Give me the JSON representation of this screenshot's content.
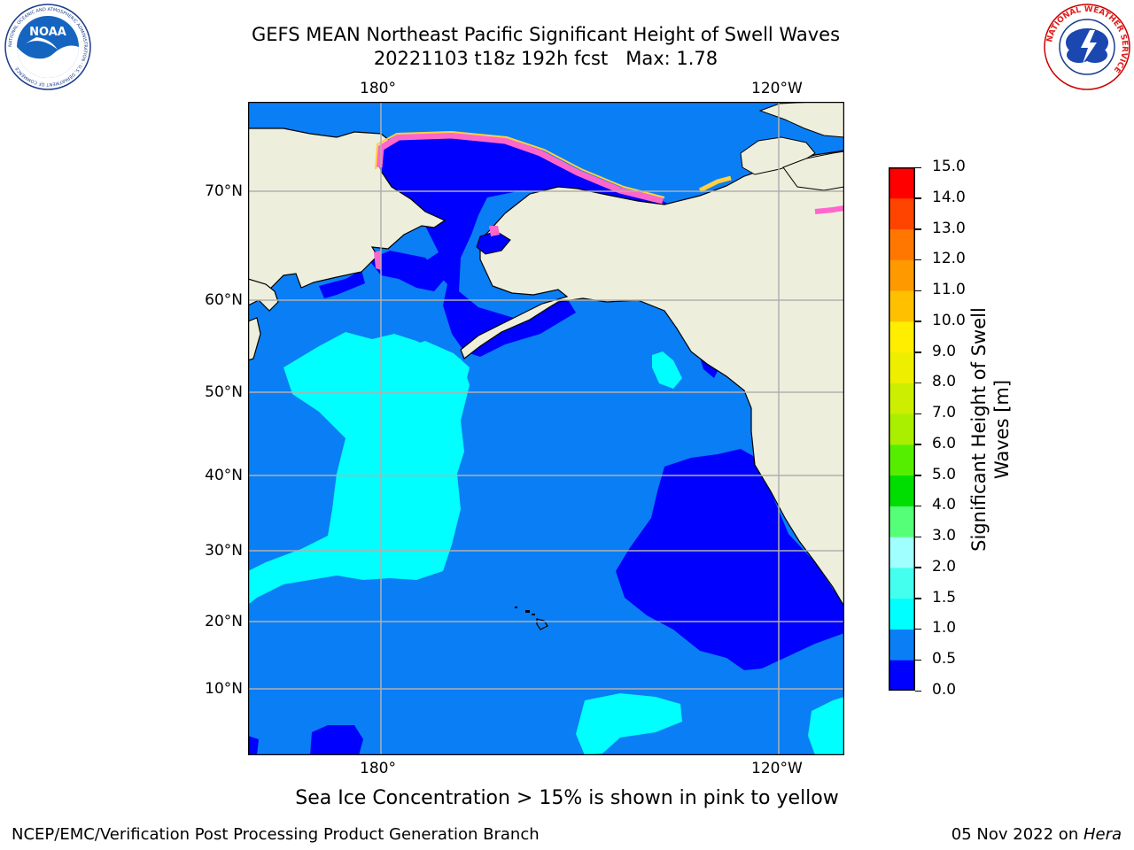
{
  "title": {
    "line1": "GEFS MEAN Northeast Pacific Significant Height of Swell Waves",
    "line2": "20221103 t18z 192h fcst   Max: 1.78"
  },
  "map": {
    "lon_labels_top": [
      "180°",
      "120°W"
    ],
    "lon_labels_bottom": [
      "180°",
      "120°W"
    ],
    "lat_labels": [
      "70°N",
      "60°N",
      "50°N",
      "40°N",
      "30°N",
      "20°N",
      "10°N"
    ],
    "colors": {
      "land": "#eeeedc",
      "ocean_0_0p5": "#0000ff",
      "ocean_0p5_1p0": "#0a7ef5",
      "ocean_1p0_1p5": "#00ffff",
      "gridline": "#b0b0b0",
      "ice_pink": "#ff66cc",
      "ice_yellow": "#ffd040"
    },
    "logos": {
      "left_icon": "noaa-logo",
      "left_text": "NOAA",
      "left_ring_text": "NATIONAL OCEANIC AND ATMOSPHERIC ADMINISTRATION · U.S. DEPARTMENT OF COMMERCE",
      "right_icon": "nws-logo",
      "right_ring_text": "NATIONAL WEATHER SERVICE"
    }
  },
  "colorbar": {
    "label": "Significant Height of Swell Waves [m]",
    "label_line1": "Significant Height of Swell",
    "label_line2": "Waves [m]",
    "ticks": [
      "0.0",
      "0.5",
      "1.0",
      "1.5",
      "2.0",
      "3.0",
      "4.0",
      "5.0",
      "6.0",
      "7.0",
      "8.0",
      "9.0",
      "10.0",
      "11.0",
      "12.0",
      "13.0",
      "14.0",
      "15.0"
    ],
    "colors": [
      "#0000ff",
      "#0a7ef5",
      "#00ffff",
      "#44ffee",
      "#a0ffff",
      "#55ff77",
      "#00dd00",
      "#55ee00",
      "#aaee00",
      "#ccee00",
      "#eeee00",
      "#ffee00",
      "#ffc000",
      "#ff9900",
      "#ff7700",
      "#ff4400",
      "#ff0000"
    ]
  },
  "subtitle": "Sea Ice Concentration > 15% is shown in pink to yellow",
  "footer": {
    "left": "NCEP/EMC/Verification Post Processing Product Generation Branch",
    "right_date": "05 Nov 2022 on ",
    "right_machine": "Hera"
  }
}
